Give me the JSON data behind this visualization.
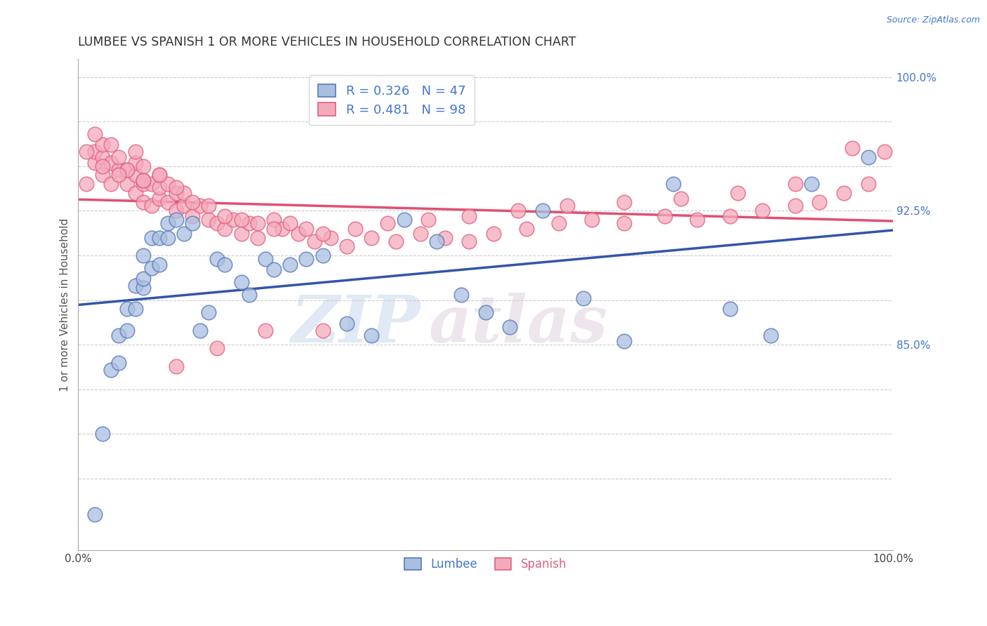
{
  "title": "LUMBEE VS SPANISH 1 OR MORE VEHICLES IN HOUSEHOLD CORRELATION CHART",
  "source_text": "Source: ZipAtlas.com",
  "ylabel": "1 or more Vehicles in Household",
  "xlim": [
    0.0,
    1.0
  ],
  "ylim": [
    0.735,
    1.01
  ],
  "xtick_vals": [
    0.0,
    0.1,
    0.2,
    0.3,
    0.4,
    0.5,
    0.6,
    0.7,
    0.8,
    0.9,
    1.0
  ],
  "ytick_vals": [
    0.775,
    0.8,
    0.825,
    0.85,
    0.875,
    0.9,
    0.925,
    0.95,
    0.975,
    1.0
  ],
  "ytick_labels": [
    "",
    "",
    "",
    "85.0%",
    "",
    "",
    "92.5%",
    "",
    "",
    "100.0%"
  ],
  "watermark_zip": "ZIP",
  "watermark_atlas": "atlas",
  "legend_blue_label": "R = 0.326   N = 47",
  "legend_pink_label": "R = 0.481   N = 98",
  "blue_face": "#AABFDF",
  "blue_edge": "#5577BB",
  "pink_face": "#F5AABC",
  "pink_edge": "#E06080",
  "blue_line": "#3355AA",
  "pink_line": "#E05070",
  "lumbee_x": [
    0.02,
    0.03,
    0.04,
    0.05,
    0.05,
    0.06,
    0.06,
    0.07,
    0.07,
    0.08,
    0.08,
    0.08,
    0.09,
    0.09,
    0.1,
    0.1,
    0.11,
    0.11,
    0.12,
    0.13,
    0.14,
    0.15,
    0.16,
    0.17,
    0.18,
    0.2,
    0.21,
    0.23,
    0.24,
    0.26,
    0.28,
    0.3,
    0.33,
    0.36,
    0.4,
    0.44,
    0.47,
    0.5,
    0.53,
    0.57,
    0.62,
    0.67,
    0.73,
    0.8,
    0.85,
    0.9,
    0.97
  ],
  "lumbee_y": [
    0.755,
    0.8,
    0.836,
    0.84,
    0.855,
    0.858,
    0.87,
    0.87,
    0.883,
    0.882,
    0.887,
    0.9,
    0.893,
    0.91,
    0.895,
    0.91,
    0.91,
    0.918,
    0.92,
    0.912,
    0.918,
    0.858,
    0.868,
    0.898,
    0.895,
    0.885,
    0.878,
    0.898,
    0.892,
    0.895,
    0.898,
    0.9,
    0.862,
    0.855,
    0.92,
    0.908,
    0.878,
    0.868,
    0.86,
    0.925,
    0.876,
    0.852,
    0.94,
    0.87,
    0.855,
    0.94,
    0.955
  ],
  "spanish_x": [
    0.01,
    0.02,
    0.02,
    0.03,
    0.03,
    0.03,
    0.04,
    0.04,
    0.05,
    0.05,
    0.06,
    0.06,
    0.07,
    0.07,
    0.07,
    0.07,
    0.08,
    0.08,
    0.08,
    0.09,
    0.09,
    0.1,
    0.1,
    0.1,
    0.11,
    0.11,
    0.12,
    0.12,
    0.13,
    0.13,
    0.14,
    0.15,
    0.16,
    0.17,
    0.18,
    0.19,
    0.2,
    0.21,
    0.22,
    0.24,
    0.25,
    0.27,
    0.29,
    0.31,
    0.33,
    0.36,
    0.39,
    0.42,
    0.45,
    0.48,
    0.51,
    0.55,
    0.59,
    0.63,
    0.67,
    0.72,
    0.76,
    0.8,
    0.84,
    0.88,
    0.91,
    0.94,
    0.97,
    0.99,
    0.02,
    0.04,
    0.06,
    0.08,
    0.1,
    0.12,
    0.14,
    0.16,
    0.18,
    0.2,
    0.22,
    0.24,
    0.26,
    0.28,
    0.3,
    0.34,
    0.38,
    0.43,
    0.48,
    0.54,
    0.6,
    0.67,
    0.74,
    0.81,
    0.88,
    0.95,
    0.01,
    0.03,
    0.05,
    0.08,
    0.12,
    0.17,
    0.23,
    0.3
  ],
  "spanish_y": [
    0.94,
    0.952,
    0.958,
    0.945,
    0.955,
    0.962,
    0.94,
    0.952,
    0.948,
    0.955,
    0.94,
    0.948,
    0.935,
    0.945,
    0.952,
    0.958,
    0.93,
    0.94,
    0.95,
    0.928,
    0.94,
    0.932,
    0.938,
    0.945,
    0.93,
    0.94,
    0.925,
    0.935,
    0.928,
    0.935,
    0.922,
    0.928,
    0.92,
    0.918,
    0.915,
    0.92,
    0.912,
    0.918,
    0.91,
    0.92,
    0.915,
    0.912,
    0.908,
    0.91,
    0.905,
    0.91,
    0.908,
    0.912,
    0.91,
    0.908,
    0.912,
    0.915,
    0.918,
    0.92,
    0.918,
    0.922,
    0.92,
    0.922,
    0.925,
    0.928,
    0.93,
    0.935,
    0.94,
    0.958,
    0.968,
    0.962,
    0.948,
    0.942,
    0.945,
    0.938,
    0.93,
    0.928,
    0.922,
    0.92,
    0.918,
    0.915,
    0.918,
    0.915,
    0.912,
    0.915,
    0.918,
    0.92,
    0.922,
    0.925,
    0.928,
    0.93,
    0.932,
    0.935,
    0.94,
    0.96,
    0.958,
    0.95,
    0.945,
    0.942,
    0.838,
    0.848,
    0.858,
    0.858
  ]
}
